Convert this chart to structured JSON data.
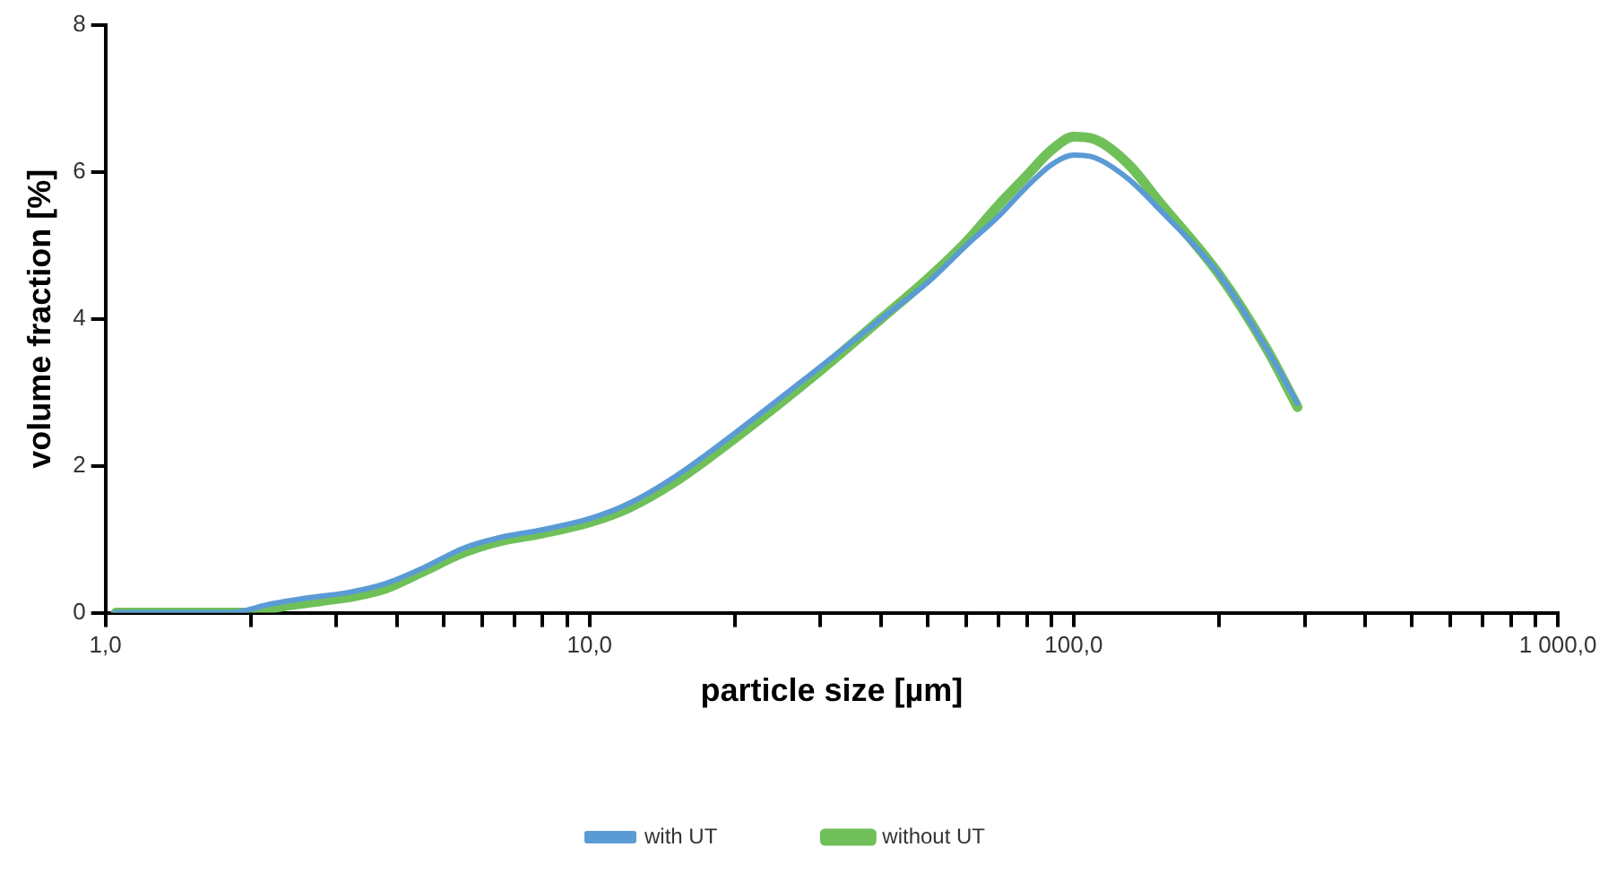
{
  "chart_data": {
    "type": "line",
    "xlabel": "particle size [µm]",
    "ylabel": "volume fraction [%]",
    "log": "x",
    "xlim": [
      1,
      1000
    ],
    "ylim": [
      0,
      8
    ],
    "xticks": [
      {
        "value": 1,
        "label": "1,0"
      },
      {
        "value": 2,
        "label": null
      },
      {
        "value": 3,
        "label": null
      },
      {
        "value": 4,
        "label": null
      },
      {
        "value": 5,
        "label": null
      },
      {
        "value": 6,
        "label": null
      },
      {
        "value": 7,
        "label": null
      },
      {
        "value": 8,
        "label": null
      },
      {
        "value": 9,
        "label": null
      },
      {
        "value": 10,
        "label": "10,0"
      },
      {
        "value": 20,
        "label": null
      },
      {
        "value": 30,
        "label": null
      },
      {
        "value": 40,
        "label": null
      },
      {
        "value": 50,
        "label": null
      },
      {
        "value": 60,
        "label": null
      },
      {
        "value": 70,
        "label": null
      },
      {
        "value": 80,
        "label": null
      },
      {
        "value": 90,
        "label": null
      },
      {
        "value": 100,
        "label": "100,0"
      },
      {
        "value": 200,
        "label": null
      },
      {
        "value": 300,
        "label": null
      },
      {
        "value": 400,
        "label": null
      },
      {
        "value": 500,
        "label": null
      },
      {
        "value": 600,
        "label": null
      },
      {
        "value": 700,
        "label": null
      },
      {
        "value": 800,
        "label": null
      },
      {
        "value": 900,
        "label": null
      },
      {
        "value": 1000,
        "label": "1 000,0"
      }
    ],
    "yticks": [
      0,
      2,
      4,
      6,
      8
    ],
    "grid": false,
    "legend": "bottom",
    "marker": "none",
    "line_style": "solid",
    "series": [
      {
        "name": "with UT",
        "color": "#5b9bd5",
        "x": [
          1.05,
          1.8,
          2.2,
          2.6,
          3.2,
          3.8,
          4.5,
          5.5,
          6.5,
          8,
          10,
          12,
          15,
          20,
          30,
          40,
          50,
          60,
          70,
          80,
          90,
          100,
          110,
          130,
          150,
          200,
          250,
          290
        ],
        "values": [
          0,
          0,
          0.12,
          0.2,
          0.28,
          0.4,
          0.6,
          0.88,
          1.02,
          1.13,
          1.28,
          1.48,
          1.85,
          2.45,
          3.35,
          4.0,
          4.5,
          5.0,
          5.4,
          5.8,
          6.1,
          6.23,
          6.2,
          5.9,
          5.5,
          4.6,
          3.6,
          2.85
        ]
      },
      {
        "name": "without UT",
        "color": "#70c05a",
        "x": [
          1.05,
          2.0,
          2.3,
          2.8,
          3.3,
          3.8,
          4.5,
          5.5,
          6.5,
          8,
          10,
          12,
          15,
          20,
          30,
          40,
          50,
          60,
          70,
          80,
          90,
          100,
          110,
          130,
          150,
          200,
          250,
          290
        ],
        "values": [
          0,
          0,
          0.08,
          0.16,
          0.23,
          0.33,
          0.55,
          0.82,
          0.97,
          1.08,
          1.23,
          1.42,
          1.78,
          2.38,
          3.3,
          4.0,
          4.55,
          5.05,
          5.55,
          5.95,
          6.3,
          6.48,
          6.45,
          6.1,
          5.6,
          4.6,
          3.6,
          2.8
        ]
      }
    ]
  }
}
